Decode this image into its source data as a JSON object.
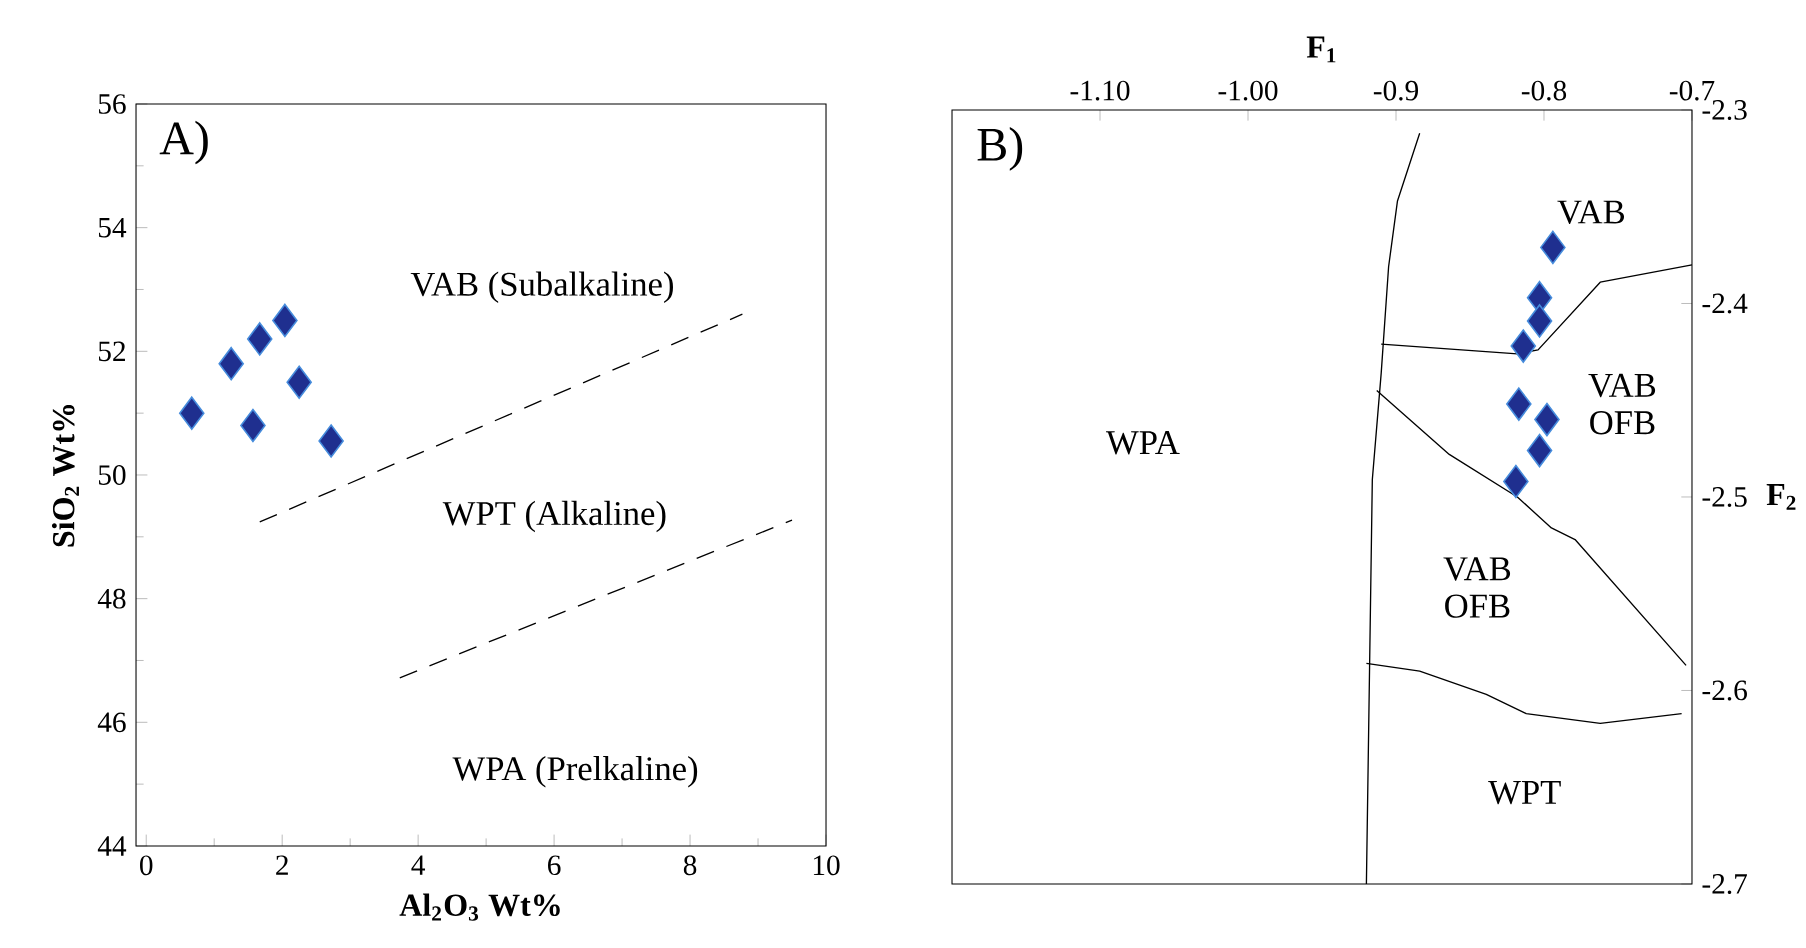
{
  "chart_data": [
    {
      "type": "scatter",
      "xlabel": "Al$_{2}$O$_{3}$ Wt%",
      "ylabel": "SiO$_{2}$  Wt%",
      "xlim": [
        -0.15,
        10
      ],
      "ylim": [
        44,
        56
      ],
      "xticks": [
        0,
        2,
        4,
        6,
        8,
        10
      ],
      "yticks": [
        44,
        46,
        48,
        50,
        52,
        54,
        56
      ],
      "series": [
        {
          "color": "#1f2f8f",
          "marker": "diamond",
          "x": [
            0.67,
            1.25,
            1.67,
            2.04,
            2.25,
            1.57,
            2.72
          ],
          "values": [
            51.0,
            51.8,
            52.2,
            52.5,
            51.5,
            50.8,
            50.55
          ]
        },
        {
          "type": "line",
          "color": "#000000",
          "line_style": "dashed",
          "x": [
            1.67,
            8.77
          ],
          "values": [
            49.24,
            52.6
          ]
        },
        {
          "type": "line",
          "color": "#000000",
          "line_style": "dashed",
          "x": [
            3.73,
            9.5
          ],
          "values": [
            46.72,
            49.27
          ]
        }
      ],
      "annotations": [
        "A)",
        "VAB (Subalkaline)",
        "WPT (Alkaline)",
        "WPA (Prelkaline)"
      ]
    },
    {
      "type": "scatter",
      "xlabel": "F$_{1}$",
      "ylabel": "F$_{2}$",
      "xlim": [
        -1.2,
        -0.7
      ],
      "ylim": [
        -2.7,
        -2.3
      ],
      "xticks": [
        {
          "value": -1.1,
          "label": "-1.10"
        },
        {
          "value": -1.0,
          "label": "-1.00"
        },
        -0.9,
        -0.8,
        -0.7
      ],
      "yticks": [
        -2.7,
        -2.6,
        -2.5,
        -2.4,
        -2.3
      ],
      "series": [
        {
          "color": "#1f2f8f",
          "marker": "diamond",
          "x": [
            -0.794,
            -0.803,
            -0.803,
            -0.814,
            -0.817,
            -0.798,
            -0.803,
            -0.819
          ],
          "values": [
            -2.371,
            -2.397,
            -2.409,
            -2.422,
            -2.452,
            -2.46,
            -2.476,
            -2.492
          ]
        },
        {
          "type": "line",
          "color": "#000000",
          "line_style": "solid",
          "x": [
            -0.884,
            -0.899,
            -0.905,
            -0.91,
            -0.916,
            -0.92
          ],
          "values": [
            -2.312,
            -2.347,
            -2.381,
            -2.436,
            -2.491,
            -2.7
          ]
        },
        {
          "type": "line",
          "color": "#000000",
          "line_style": "solid",
          "x": [
            -0.91,
            -0.818,
            -0.804,
            -0.762,
            -0.7
          ],
          "values": [
            -2.421,
            -2.426,
            -2.424,
            -2.389,
            -2.38
          ]
        },
        {
          "type": "line",
          "color": "#000000",
          "line_style": "solid",
          "x": [
            -0.913,
            -0.864,
            -0.818,
            -0.795,
            -0.779,
            -0.704
          ],
          "values": [
            -2.445,
            -2.478,
            -2.5,
            -2.516,
            -2.522,
            -2.587
          ]
        },
        {
          "type": "line",
          "color": "#000000",
          "line_style": "solid",
          "x": [
            -0.92,
            -0.884,
            -0.839,
            -0.812,
            -0.762,
            -0.707
          ],
          "values": [
            -2.586,
            -2.59,
            -2.602,
            -2.612,
            -2.617,
            -2.612
          ]
        }
      ],
      "annotations": [
        "B)",
        "VAB",
        "VAB OFB",
        "VAB OFB",
        "WPA",
        "WPT"
      ]
    }
  ]
}
